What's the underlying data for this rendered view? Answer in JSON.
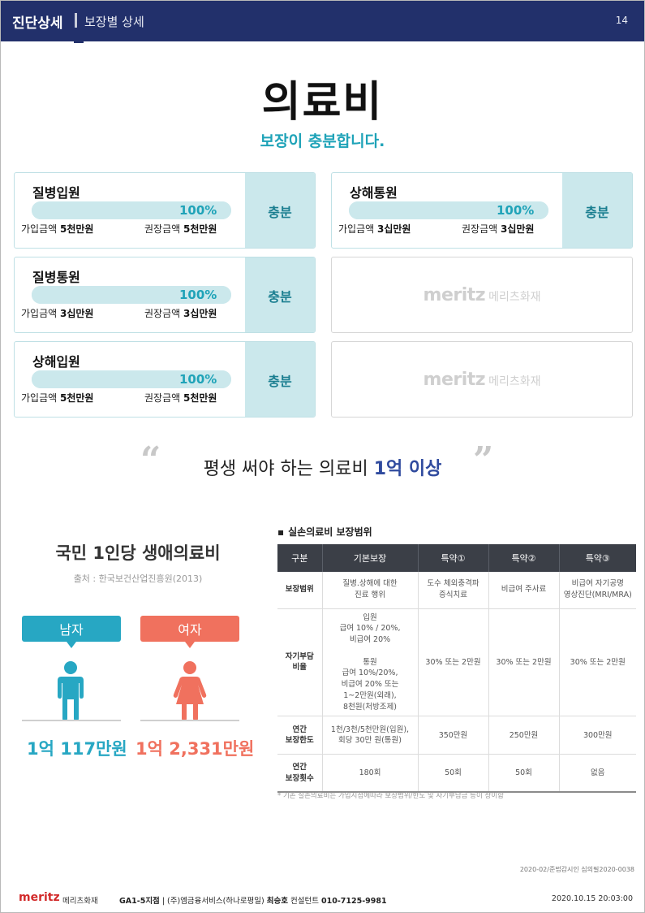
{
  "header": {
    "title": "진단상세",
    "subtitle": "보장별 상세",
    "page_number": "14"
  },
  "main": {
    "title": "의료비",
    "subtitle": "보장이 충분합니다."
  },
  "labels": {
    "joined": "가입금액",
    "recommended": "권장금액"
  },
  "cards": [
    {
      "name": "질병입원",
      "percent": "100%",
      "fill": 1.0,
      "joined": "5천만원",
      "recommended": "5천만원",
      "status": "충분"
    },
    {
      "name": "상해통원",
      "percent": "100%",
      "fill": 1.0,
      "joined": "3십만원",
      "recommended": "3십만원",
      "status": "충분"
    },
    {
      "name": "질병통원",
      "percent": "100%",
      "fill": 1.0,
      "joined": "3십만원",
      "recommended": "3십만원",
      "status": "충분"
    },
    {
      "name": "상해입원",
      "percent": "100%",
      "fill": 1.0,
      "joined": "5천만원",
      "recommended": "5천만원",
      "status": "충분"
    }
  ],
  "placeholder_logo": {
    "en": "meritz",
    "kr": "메리츠화재"
  },
  "quote": {
    "open": "“",
    "close": "”",
    "text": "평생 써야 하는 의료비 ",
    "highlight": "1억 이상"
  },
  "lifetime": {
    "title": "국민 1인당 생애의료비",
    "source": "출처 : 한국보건산업진흥원(2013)",
    "male_label": "남자",
    "female_label": "여자",
    "male_amount": "1억 117만원",
    "female_amount": "1억 2,331만원"
  },
  "coverage_table": {
    "title": "실손의료비 보장범위",
    "headers": [
      "구분",
      "기본보장",
      "특약①",
      "특약②",
      "특약③"
    ],
    "rows": [
      {
        "label": "보장범위",
        "cells": [
          "질병.상해에 대한\n진료 행위",
          "도수 체외충격파\n증식치료",
          "비급여 주사료",
          "비급여 자기공명\n영상진단(MRI/MRA)"
        ]
      },
      {
        "label": "자기부담\n비율",
        "cells": [
          "입원\n급여 10% / 20%,\n비급여 20%\n\n통원\n급여 10%/20%,\n비급여 20% 또는\n1~2만원(외래),\n8천원(처방조제)",
          "30% 또는 2만원",
          "30% 또는 2만원",
          "30% 또는 2만원"
        ]
      },
      {
        "label": "연간\n보장한도",
        "cells": [
          "1천/3천/5천만원(입원),\n회당 30만 원(통원)",
          "350만원",
          "250만원",
          "300만원"
        ]
      },
      {
        "label": "연간\n보장횟수",
        "cells": [
          "180회",
          "50회",
          "50회",
          "없음"
        ]
      }
    ],
    "note": "* 기존 실손의료비는 가입시점에따라 보장범위/한도 및 자기부담금 등이 상이함"
  },
  "footer": {
    "doc_code": "2020-02/준법감시인 심의필2020-0038",
    "logo_en": "meritz",
    "logo_kr": "메리츠화재",
    "branch": "GA1-5지점",
    "company": " | (주)엠금융서비스(하나로평일) ",
    "agent_name": "최승호",
    "agent_title": " 컨설턴트 ",
    "phone": "010-7125-9981",
    "datetime": "2020.10.15  20:03:00"
  },
  "colors": {
    "navy": "#22306b",
    "teal": "#1fa3b8",
    "male": "#27a7c3",
    "female": "#f0715e",
    "highlight": "#2f4a9e"
  }
}
